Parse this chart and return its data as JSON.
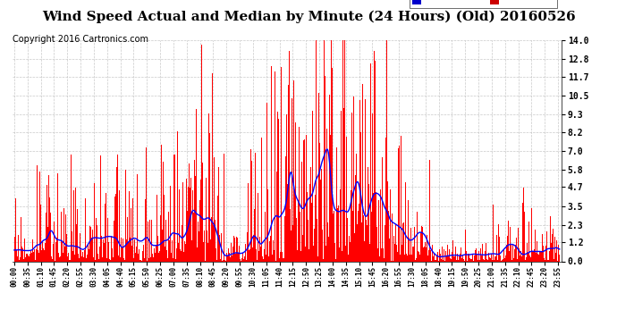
{
  "title": "Wind Speed Actual and Median by Minute (24 Hours) (Old) 20160526",
  "copyright": "Copyright 2016 Cartronics.com",
  "yticks": [
    0.0,
    1.2,
    2.3,
    3.5,
    4.7,
    5.8,
    7.0,
    8.2,
    9.3,
    10.5,
    11.7,
    12.8,
    14.0
  ],
  "ylim": [
    0.0,
    14.0
  ],
  "bar_color": "#FF0000",
  "median_color": "#0000FF",
  "background_color": "#FFFFFF",
  "grid_color": "#BBBBBB",
  "title_fontsize": 11,
  "copyright_fontsize": 7,
  "legend_median_color": "#0000CC",
  "legend_wind_color": "#CC0000",
  "tick_interval": 35
}
